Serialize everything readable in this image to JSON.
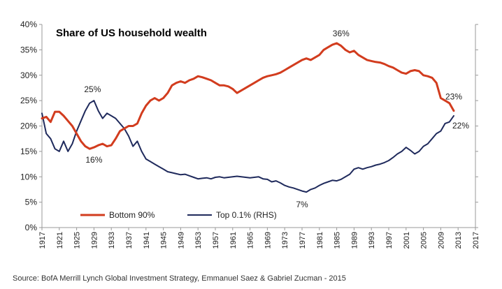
{
  "source": "Source: BofA Merrill Lynch Global Investment Strategy, Emmanuel Saez & Gabriel Zucman - 2015",
  "colors": {
    "bottom90": "#d23c1e",
    "top01": "#1f2a5c",
    "axis": "#999999"
  },
  "chart_data": {
    "type": "line",
    "title": "Share of US household wealth",
    "xlim": [
      1917,
      2017
    ],
    "ylim": [
      0,
      40
    ],
    "y_ticks": [
      "0%",
      "5%",
      "10%",
      "15%",
      "20%",
      "25%",
      "30%",
      "35%",
      "40%"
    ],
    "y_tick_values": [
      0,
      5,
      10,
      15,
      20,
      25,
      30,
      35,
      40
    ],
    "x_ticks": [
      "1917",
      "1921",
      "1925",
      "1929",
      "1933",
      "1937",
      "1941",
      "1945",
      "1949",
      "1953",
      "1957",
      "1961",
      "1965",
      "1969",
      "1973",
      "1977",
      "1981",
      "1985",
      "1989",
      "1993",
      "1997",
      "2001",
      "2005",
      "2009",
      "2013",
      "2017"
    ],
    "x_tick_values": [
      1917,
      1921,
      1925,
      1929,
      1933,
      1937,
      1941,
      1945,
      1949,
      1953,
      1957,
      1961,
      1965,
      1969,
      1973,
      1977,
      1981,
      1985,
      1989,
      1993,
      1997,
      2001,
      2005,
      2009,
      2013,
      2017
    ],
    "legend": {
      "position": "bottom-left"
    },
    "series": [
      {
        "name": "Bottom 90%",
        "x": [
          1917,
          1918,
          1919,
          1920,
          1921,
          1922,
          1923,
          1924,
          1925,
          1926,
          1927,
          1928,
          1929,
          1930,
          1931,
          1932,
          1933,
          1934,
          1935,
          1936,
          1937,
          1938,
          1939,
          1940,
          1941,
          1942,
          1943,
          1944,
          1945,
          1946,
          1947,
          1948,
          1949,
          1950,
          1951,
          1952,
          1953,
          1954,
          1955,
          1956,
          1957,
          1958,
          1959,
          1960,
          1961,
          1962,
          1963,
          1964,
          1965,
          1966,
          1967,
          1968,
          1969,
          1970,
          1971,
          1972,
          1973,
          1974,
          1975,
          1976,
          1977,
          1978,
          1979,
          1980,
          1981,
          1982,
          1983,
          1984,
          1985,
          1986,
          1987,
          1988,
          1989,
          1990,
          1991,
          1992,
          1993,
          1994,
          1995,
          1996,
          1997,
          1998,
          1999,
          2000,
          2001,
          2002,
          2003,
          2004,
          2005,
          2006,
          2007,
          2008,
          2009,
          2010,
          2011,
          2012
        ],
        "values": [
          21.5,
          21.8,
          20.8,
          22.8,
          22.8,
          22.0,
          21.0,
          20.0,
          18.5,
          17.0,
          16.0,
          15.5,
          15.8,
          16.2,
          16.5,
          16.0,
          16.2,
          17.5,
          19.0,
          19.5,
          20.0,
          20.0,
          20.5,
          22.5,
          24.0,
          25.0,
          25.5,
          25.0,
          25.5,
          26.5,
          28.0,
          28.5,
          28.8,
          28.5,
          29.0,
          29.3,
          29.8,
          29.6,
          29.3,
          29.0,
          28.5,
          28.0,
          28.0,
          27.8,
          27.3,
          26.5,
          27.0,
          27.5,
          28.0,
          28.5,
          29.0,
          29.5,
          29.8,
          30.0,
          30.2,
          30.5,
          31.0,
          31.5,
          32.0,
          32.5,
          33.0,
          33.3,
          33.0,
          33.5,
          34.0,
          35.0,
          35.5,
          36.0,
          36.3,
          35.8,
          35.0,
          34.5,
          34.8,
          34.0,
          33.5,
          33.0,
          32.8,
          32.6,
          32.5,
          32.2,
          31.8,
          31.5,
          31.0,
          30.5,
          30.3,
          30.8,
          31.0,
          30.8,
          30.0,
          29.8,
          29.5,
          28.5,
          25.5,
          25.0,
          24.5,
          23.0
        ],
        "annotations": [
          {
            "label": "16%",
            "x": 1929,
            "y": 15.5
          },
          {
            "label": "36%",
            "x": 1986,
            "y": 36.3
          },
          {
            "label": "23%",
            "x": 2012,
            "y": 23.0
          }
        ]
      },
      {
        "name": "Top 0.1% (RHS)",
        "x": [
          1917,
          1918,
          1919,
          1920,
          1921,
          1922,
          1923,
          1924,
          1925,
          1926,
          1927,
          1928,
          1929,
          1930,
          1931,
          1932,
          1933,
          1934,
          1935,
          1936,
          1937,
          1938,
          1939,
          1940,
          1941,
          1942,
          1943,
          1944,
          1945,
          1946,
          1947,
          1948,
          1949,
          1950,
          1951,
          1952,
          1953,
          1954,
          1955,
          1956,
          1957,
          1958,
          1959,
          1960,
          1961,
          1962,
          1963,
          1964,
          1965,
          1966,
          1967,
          1968,
          1969,
          1970,
          1971,
          1972,
          1973,
          1974,
          1975,
          1976,
          1977,
          1978,
          1979,
          1980,
          1981,
          1982,
          1983,
          1984,
          1985,
          1986,
          1987,
          1988,
          1989,
          1990,
          1991,
          1992,
          1993,
          1994,
          1995,
          1996,
          1997,
          1998,
          1999,
          2000,
          2001,
          2002,
          2003,
          2004,
          2005,
          2006,
          2007,
          2008,
          2009,
          2010,
          2011,
          2012
        ],
        "values": [
          22.5,
          18.5,
          17.5,
          15.5,
          15.0,
          17.0,
          15.0,
          16.5,
          19.0,
          21.0,
          23.0,
          24.5,
          25.0,
          23.0,
          21.5,
          22.5,
          22.0,
          21.5,
          20.5,
          19.5,
          18.0,
          16.0,
          17.0,
          15.0,
          13.5,
          13.0,
          12.5,
          12.0,
          11.5,
          11.0,
          10.8,
          10.6,
          10.4,
          10.5,
          10.2,
          9.9,
          9.6,
          9.7,
          9.8,
          9.6,
          9.9,
          10.0,
          9.8,
          9.9,
          10.0,
          10.1,
          10.0,
          9.9,
          9.8,
          9.9,
          10.0,
          9.6,
          9.5,
          9.0,
          9.2,
          8.8,
          8.3,
          8.0,
          7.8,
          7.5,
          7.2,
          7.0,
          7.5,
          7.8,
          8.3,
          8.7,
          9.0,
          9.3,
          9.2,
          9.5,
          10.0,
          10.5,
          11.5,
          11.8,
          11.5,
          11.8,
          12.0,
          12.3,
          12.5,
          12.8,
          13.2,
          13.8,
          14.5,
          15.0,
          15.8,
          15.2,
          14.5,
          15.0,
          16.0,
          16.5,
          17.5,
          18.5,
          19.0,
          20.5,
          20.8,
          22.0
        ],
        "annotations": [
          {
            "label": "25%",
            "x": 1929,
            "y": 25.0
          },
          {
            "label": "7%",
            "x": 1977,
            "y": 7.0
          },
          {
            "label": "22%",
            "x": 2012,
            "y": 22.0
          }
        ]
      }
    ]
  }
}
